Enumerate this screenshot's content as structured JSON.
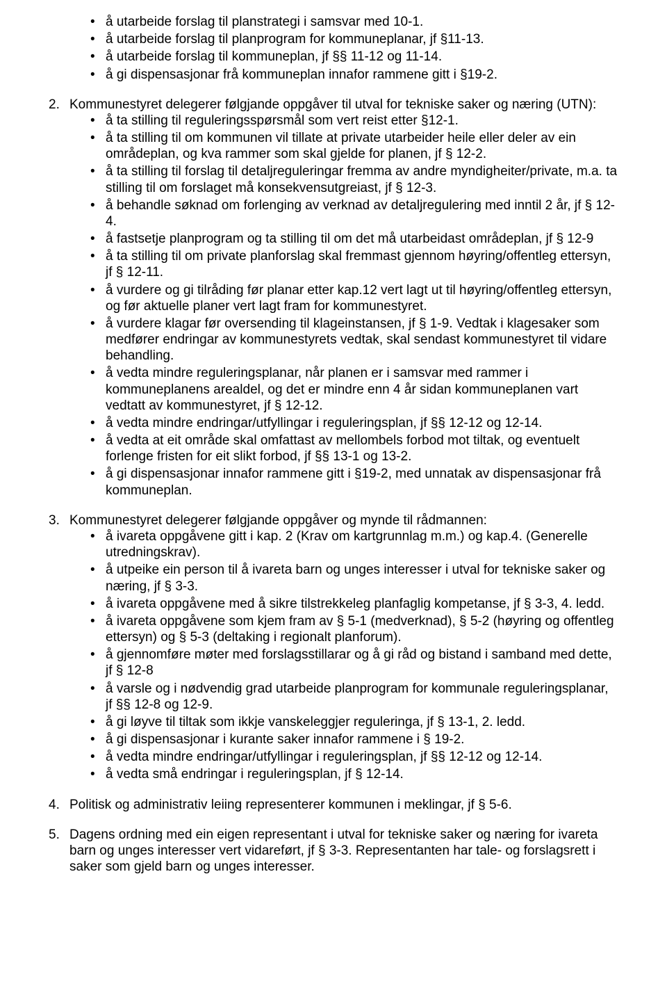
{
  "section1": {
    "items": [
      "å utarbeide forslag til planstrategi i samsvar med 10-1.",
      "å utarbeide forslag til planprogram for kommuneplanar, jf §11-13.",
      "å utarbeide forslag til kommuneplan, jf §§ 11-12 og 11-14.",
      "å gi dispensasjonar frå kommuneplan innafor rammene gitt i §19-2."
    ]
  },
  "section2": {
    "num": "2.",
    "intro": "Kommunestyret delegerer følgjande oppgåver til utval for tekniske saker og næring (UTN):",
    "items": [
      "å ta stilling til reguleringsspørsmål som vert reist etter §12-1.",
      "å ta stilling til om kommunen vil tillate at private utarbeider heile eller deler av ein områdeplan, og kva rammer som skal gjelde for planen, jf § 12-2.",
      "å ta stilling til forslag til detaljreguleringar fremma av andre myndigheiter/private, m.a. ta stilling til om forslaget må konsekvensutgreiast, jf § 12-3.",
      "å behandle søknad om forlenging av verknad av detaljregulering med inntil 2 år, jf § 12-4.",
      "å fastsetje planprogram og ta stilling til om det må utarbeidast områdeplan, jf § 12-9",
      "å ta stilling til om private planforslag skal fremmast gjennom høyring/offentleg ettersyn, jf § 12-11.",
      "å vurdere og gi tilråding før planar etter kap.12  vert lagt ut til høyring/offentleg ettersyn, og før aktuelle planer vert lagt fram for kommunestyret.",
      "å vurdere klagar før oversending til klageinstansen, jf § 1-9. Vedtak i klagesaker som medfører endringar av kommunestyrets vedtak, skal sendast kommunestyret til vidare behandling.",
      "å vedta mindre reguleringsplanar, når planen er i samsvar med rammer i kommuneplanens arealdel, og det er mindre enn 4 år sidan kommuneplanen vart vedtatt av kommunestyret, jf § 12-12.",
      "å vedta mindre endringar/utfyllingar i reguleringsplan, jf §§ 12-12 og 12-14.",
      "å vedta at eit område skal omfattast av mellombels forbod mot tiltak, og eventuelt forlenge fristen for eit slikt forbod, jf §§ 13-1 og 13-2.",
      "å gi dispensasjonar innafor rammene gitt i §19-2, med unnatak av dispensasjonar frå kommuneplan."
    ]
  },
  "section3": {
    "num": "3.",
    "intro": "Kommunestyret delegerer følgjande oppgåver og mynde til rådmannen:",
    "items": [
      "å ivareta oppgåvene gitt i kap. 2 (Krav om kartgrunnlag m.m.) og kap.4. (Generelle utredningskrav).",
      "å utpeike ein person til å ivareta barn og unges interesser i utval for tekniske saker og næring, jf § 3-3.",
      "å ivareta oppgåvene med å sikre tilstrekkeleg planfaglig kompetanse, jf § 3-3, 4. ledd.",
      "å ivareta oppgåvene som kjem fram av § 5-1 (medverknad), § 5-2 (høyring og offentleg ettersyn) og § 5-3 (deltaking i regionalt planforum).",
      "å gjennomføre møter med forslagsstillarar og å gi råd og bistand i samband med dette, jf § 12-8",
      "å varsle og i nødvendig grad utarbeide planprogram for kommunale reguleringsplanar, jf §§ 12-8 og 12-9.",
      "å gi løyve til tiltak som ikkje vanskeleggjer reguleringa, jf § 13-1, 2. ledd.",
      "å gi dispensasjonar i kurante saker innafor rammene i § 19-2.",
      "å vedta mindre endringar/utfyllingar i reguleringsplan, jf §§ 12-12 og 12-14.",
      "å vedta små endringar i reguleringsplan, jf § 12-14."
    ]
  },
  "section4": {
    "num": "4.",
    "text": "Politisk og administrativ leiing representerer kommunen i meklingar, jf § 5-6."
  },
  "section5": {
    "num": "5.",
    "text": "Dagens ordning med ein eigen representant i utval for tekniske saker og næring for ivareta barn og unges interesser vert vidareført, jf § 3-3. Representanten har tale- og forslagsrett i saker som gjeld barn og unges interesser."
  }
}
